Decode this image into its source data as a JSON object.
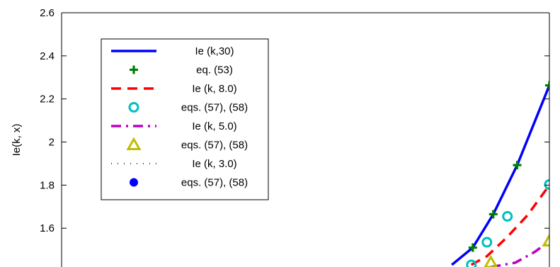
{
  "chart_data": {
    "type": "line",
    "title": "",
    "xlabel": "",
    "ylabel": "Ie(k, x)",
    "ylim": [
      1.42,
      2.6
    ],
    "xlim": [
      0,
      1
    ],
    "yticks": [
      "1.6",
      "1.8",
      "2",
      "2.2",
      "2.4",
      "2.6"
    ],
    "ytick_values": [
      1.6,
      1.8,
      2.0,
      2.2,
      2.4,
      2.6
    ],
    "grid": false,
    "legend_position": "top-left",
    "series": [
      {
        "name": "Ie (k,30)",
        "style": "solid",
        "color": "#0000ff",
        "x": [
          0.8,
          0.843,
          0.885,
          0.934,
          1.0
        ],
        "y": [
          1.43,
          1.51,
          1.665,
          1.893,
          2.263
        ]
      },
      {
        "name": "eq. (53)",
        "style": "marker-plus",
        "color": "#008000",
        "x": [
          0.843,
          0.885,
          0.934,
          1.0
        ],
        "y": [
          1.51,
          1.665,
          1.893,
          2.263
        ]
      },
      {
        "name": "Ie (k, 8.0)",
        "style": "dashed",
        "color": "#ff0000",
        "x": [
          0.84,
          0.872,
          0.914,
          0.955,
          1.0
        ],
        "y": [
          1.43,
          1.47,
          1.56,
          1.66,
          1.8
        ]
      },
      {
        "name": "eqs. (57), (58)",
        "style": "marker-circle",
        "color": "#00bfbf",
        "x": [
          0.84,
          0.872,
          0.914,
          1.0
        ],
        "y": [
          1.43,
          1.535,
          1.655,
          1.803
        ]
      },
      {
        "name": "Ie (k, 5.0)",
        "style": "dashdot",
        "color": "#bf00bf",
        "x": [
          0.88,
          0.93,
          0.97,
          1.0
        ],
        "y": [
          1.42,
          1.44,
          1.49,
          1.54
        ]
      },
      {
        "name": "eqs. (57), (58)",
        "style": "marker-triangle",
        "color": "#bfbf00",
        "x": [
          0.88,
          1.0
        ],
        "y": [
          1.44,
          1.54
        ]
      },
      {
        "name": "Ie (k, 3.0)",
        "style": "dotted",
        "color": "#000000",
        "x": [],
        "y": []
      },
      {
        "name": "eqs. (57), (58)",
        "style": "marker-dot",
        "color": "#0000ff",
        "x": [],
        "y": []
      }
    ]
  }
}
